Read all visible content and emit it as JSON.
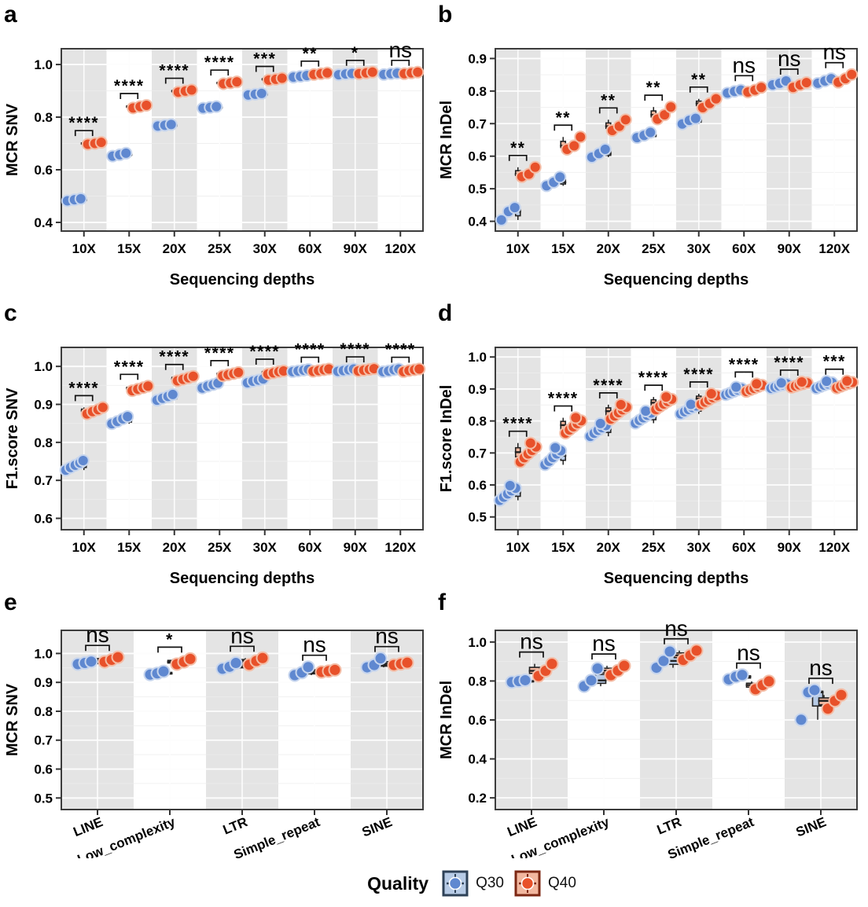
{
  "figure": {
    "background": "#ffffff"
  },
  "colors": {
    "series": [
      {
        "name": "Q30",
        "point": "#5f88d0",
        "point_stroke": "#c6d5ee",
        "box_fill": "#b7cbe6",
        "key_border": "#2e4157"
      },
      {
        "name": "Q40",
        "point": "#e8512a",
        "point_stroke": "#f4bda6",
        "box_fill": "#f2b79f",
        "key_border": "#7c2713"
      }
    ],
    "stripe": "#e4e4e4",
    "panel_border": "#3c3c3c",
    "grid_white": "#ffffff",
    "grid_light": "#ededed",
    "box_stroke": "#222222",
    "sig": "#111111",
    "text": "#000000"
  },
  "legend": {
    "title": "Quality",
    "items": [
      {
        "label": "Q30"
      },
      {
        "label": "Q40"
      }
    ]
  },
  "chart_data": [
    {
      "label": "a",
      "type": "scatter",
      "ylabel": "MCR SNV",
      "xlabel": "Sequencing depths",
      "categories": [
        "10X",
        "15X",
        "20X",
        "25X",
        "30X",
        "60X",
        "90X",
        "120X"
      ],
      "ylim": [
        0.367,
        1.06
      ],
      "yticks": [
        0.4,
        0.6,
        0.8,
        1.0
      ],
      "rotated_labels": false,
      "grid": true,
      "legend_position": "bottom-shared",
      "significance": [
        "****",
        "****",
        "****",
        "****",
        "***",
        "**",
        "*",
        "ns"
      ],
      "series": [
        {
          "name": "Q30",
          "values": [
            [
              0.482,
              0.486,
              0.49
            ],
            [
              0.652,
              0.657,
              0.663
            ],
            [
              0.766,
              0.769,
              0.772
            ],
            [
              0.834,
              0.837,
              0.84
            ],
            [
              0.884,
              0.887,
              0.89
            ],
            [
              0.952,
              0.955,
              0.958
            ],
            [
              0.961,
              0.964,
              0.966
            ],
            [
              0.962,
              0.965,
              0.967
            ]
          ]
        },
        {
          "name": "Q40",
          "values": [
            [
              0.697,
              0.7,
              0.704
            ],
            [
              0.835,
              0.84,
              0.845
            ],
            [
              0.895,
              0.899,
              0.903
            ],
            [
              0.927,
              0.93,
              0.934
            ],
            [
              0.941,
              0.944,
              0.948
            ],
            [
              0.962,
              0.965,
              0.968
            ],
            [
              0.965,
              0.968,
              0.971
            ],
            [
              0.965,
              0.968,
              0.971
            ]
          ]
        }
      ]
    },
    {
      "label": "b",
      "type": "scatter",
      "ylabel": "MCR InDel",
      "xlabel": "Sequencing depths",
      "categories": [
        "10X",
        "15X",
        "20X",
        "25X",
        "30X",
        "60X",
        "90X",
        "120X"
      ],
      "ylim": [
        0.37,
        0.93
      ],
      "yticks": [
        0.4,
        0.5,
        0.6,
        0.7,
        0.8,
        0.9
      ],
      "rotated_labels": false,
      "grid": true,
      "legend_position": "bottom-shared",
      "significance": [
        "**",
        "**",
        "**",
        "**",
        "**",
        "ns",
        "ns",
        "ns"
      ],
      "series": [
        {
          "name": "Q30",
          "values": [
            [
              0.404,
              0.43,
              0.442
            ],
            [
              0.509,
              0.52,
              0.536
            ],
            [
              0.597,
              0.608,
              0.621
            ],
            [
              0.657,
              0.664,
              0.673
            ],
            [
              0.699,
              0.71,
              0.716
            ],
            [
              0.794,
              0.799,
              0.803
            ],
            [
              0.819,
              0.824,
              0.831
            ],
            [
              0.824,
              0.831,
              0.838
            ]
          ]
        },
        {
          "name": "Q40",
          "values": [
            [
              0.537,
              0.545,
              0.566
            ],
            [
              0.621,
              0.632,
              0.659
            ],
            [
              0.679,
              0.692,
              0.712
            ],
            [
              0.714,
              0.727,
              0.751
            ],
            [
              0.749,
              0.762,
              0.776
            ],
            [
              0.797,
              0.803,
              0.811
            ],
            [
              0.811,
              0.819,
              0.826
            ],
            [
              0.827,
              0.838,
              0.851
            ]
          ]
        }
      ]
    },
    {
      "label": "c",
      "type": "scatter",
      "ylabel": "F1.score SNV",
      "xlabel": "Sequencing depths",
      "categories": [
        "10X",
        "15X",
        "20X",
        "25X",
        "30X",
        "60X",
        "90X",
        "120X"
      ],
      "ylim": [
        0.57,
        1.05
      ],
      "yticks": [
        0.6,
        0.7,
        0.8,
        0.9,
        1.0
      ],
      "rotated_labels": false,
      "grid": true,
      "legend_position": "bottom-shared",
      "significance": [
        "****",
        "****",
        "****",
        "****",
        "****",
        "****",
        "****",
        "****"
      ],
      "series": [
        {
          "name": "Q30",
          "values": [
            [
              0.727,
              0.734,
              0.74,
              0.746,
              0.752
            ],
            [
              0.849,
              0.855,
              0.862,
              0.868
            ],
            [
              0.911,
              0.916,
              0.921,
              0.926
            ],
            [
              0.943,
              0.948,
              0.952,
              0.956
            ],
            [
              0.957,
              0.961,
              0.964,
              0.967
            ],
            [
              0.986,
              0.988,
              0.99,
              0.992
            ],
            [
              0.987,
              0.989,
              0.991,
              0.993
            ],
            [
              0.986,
              0.988,
              0.991,
              0.993
            ]
          ]
        },
        {
          "name": "Q40",
          "values": [
            [
              0.875,
              0.881,
              0.886,
              0.892
            ],
            [
              0.936,
              0.94,
              0.944,
              0.948
            ],
            [
              0.962,
              0.966,
              0.97,
              0.974
            ],
            [
              0.975,
              0.978,
              0.981,
              0.984
            ],
            [
              0.98,
              0.983,
              0.986,
              0.988
            ],
            [
              0.987,
              0.989,
              0.991,
              0.993
            ],
            [
              0.988,
              0.99,
              0.992,
              0.994
            ],
            [
              0.986,
              0.989,
              0.991,
              0.993
            ]
          ]
        }
      ]
    },
    {
      "label": "d",
      "type": "scatter",
      "ylabel": "F1.score InDel",
      "xlabel": "Sequencing depths",
      "categories": [
        "10X",
        "15X",
        "20X",
        "25X",
        "30X",
        "60X",
        "90X",
        "120X"
      ],
      "ylim": [
        0.46,
        1.03
      ],
      "yticks": [
        0.5,
        0.6,
        0.7,
        0.8,
        0.9,
        1.0
      ],
      "rotated_labels": false,
      "grid": true,
      "legend_position": "bottom-shared",
      "significance": [
        "****",
        "****",
        "****",
        "****",
        "****",
        "****",
        "****",
        "***"
      ],
      "series": [
        {
          "name": "Q30",
          "values": [
            [
              0.552,
              0.562,
              0.572,
              0.582,
              0.59,
              0.598
            ],
            [
              0.663,
              0.674,
              0.686,
              0.697,
              0.707,
              0.716
            ],
            [
              0.752,
              0.762,
              0.771,
              0.779,
              0.786,
              0.792
            ],
            [
              0.793,
              0.802,
              0.81,
              0.818,
              0.825,
              0.831
            ],
            [
              0.822,
              0.829,
              0.836,
              0.842,
              0.847,
              0.852
            ],
            [
              0.882,
              0.887,
              0.892,
              0.897,
              0.902,
              0.906
            ],
            [
              0.902,
              0.906,
              0.91,
              0.913,
              0.916,
              0.919
            ],
            [
              0.902,
              0.907,
              0.912,
              0.916,
              0.92,
              0.924
            ]
          ]
        },
        {
          "name": "Q40",
          "values": [
            [
              0.672,
              0.685,
              0.697,
              0.708,
              0.719,
              0.731
            ],
            [
              0.762,
              0.772,
              0.782,
              0.792,
              0.801,
              0.81
            ],
            [
              0.806,
              0.816,
              0.826,
              0.835,
              0.843,
              0.851
            ],
            [
              0.836,
              0.845,
              0.853,
              0.861,
              0.868,
              0.875
            ],
            [
              0.852,
              0.859,
              0.866,
              0.873,
              0.879,
              0.885
            ],
            [
              0.892,
              0.897,
              0.902,
              0.907,
              0.912,
              0.916
            ],
            [
              0.905,
              0.909,
              0.913,
              0.916,
              0.919,
              0.922
            ],
            [
              0.903,
              0.908,
              0.913,
              0.917,
              0.921,
              0.925
            ]
          ]
        }
      ]
    },
    {
      "label": "e",
      "type": "scatter",
      "ylabel": "MCR SNV",
      "xlabel": "",
      "categories": [
        "LINE",
        "Low_complexity",
        "LTR",
        "Simple_repeat",
        "SINE"
      ],
      "ylim": [
        0.46,
        1.08
      ],
      "yticks": [
        0.5,
        0.6,
        0.7,
        0.8,
        0.9,
        1.0
      ],
      "rotated_labels": true,
      "grid": true,
      "legend_position": "bottom-shared",
      "significance": [
        "ns",
        "*",
        "ns",
        "ns",
        "ns"
      ],
      "series": [
        {
          "name": "Q30",
          "values": [
            [
              0.963,
              0.967,
              0.972
            ],
            [
              0.927,
              0.931,
              0.938
            ],
            [
              0.947,
              0.954,
              0.967
            ],
            [
              0.925,
              0.934,
              0.953
            ],
            [
              0.952,
              0.96,
              0.983
            ]
          ]
        },
        {
          "name": "Q40",
          "values": [
            [
              0.971,
              0.978,
              0.987
            ],
            [
              0.963,
              0.971,
              0.981
            ],
            [
              0.961,
              0.974,
              0.984
            ],
            [
              0.936,
              0.939,
              0.943
            ],
            [
              0.96,
              0.964,
              0.968
            ]
          ]
        }
      ]
    },
    {
      "label": "f",
      "type": "scatter",
      "ylabel": "MCR InDel",
      "xlabel": "",
      "categories": [
        "LINE",
        "Low_complexity",
        "LTR",
        "Simple_repeat",
        "SINE"
      ],
      "ylim": [
        0.14,
        1.06
      ],
      "yticks": [
        0.2,
        0.4,
        0.6,
        0.8,
        1.0
      ],
      "rotated_labels": true,
      "grid": true,
      "legend_position": "bottom-shared",
      "significance": [
        "ns",
        "ns",
        "ns",
        "ns",
        "ns"
      ],
      "series": [
        {
          "name": "Q30",
          "values": [
            [
              0.794,
              0.799,
              0.804
            ],
            [
              0.773,
              0.803,
              0.864
            ],
            [
              0.868,
              0.903,
              0.951
            ],
            [
              0.808,
              0.822,
              0.831
            ],
            [
              0.601,
              0.742,
              0.753
            ]
          ]
        },
        {
          "name": "Q40",
          "values": [
            [
              0.826,
              0.852,
              0.888
            ],
            [
              0.83,
              0.853,
              0.878
            ],
            [
              0.908,
              0.932,
              0.956
            ],
            [
              0.758,
              0.779,
              0.798
            ],
            [
              0.658,
              0.698,
              0.728
            ]
          ]
        }
      ]
    }
  ]
}
